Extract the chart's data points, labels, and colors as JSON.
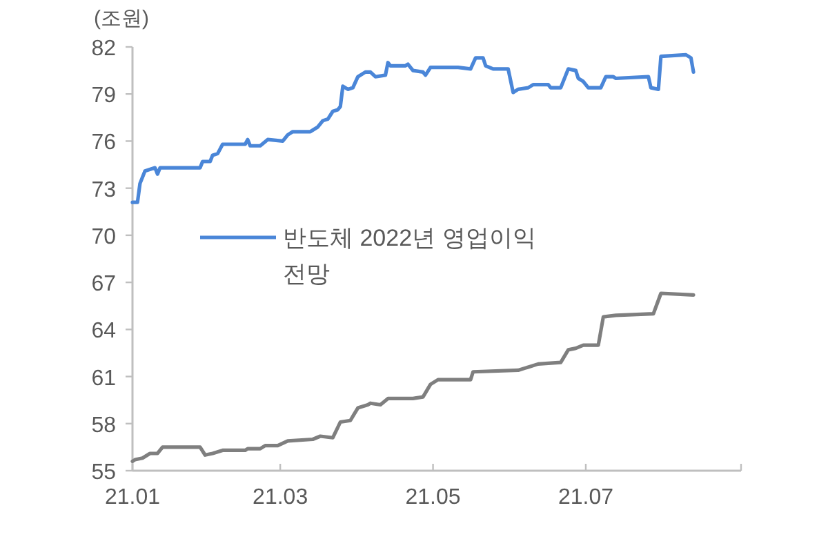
{
  "chart_data": {
    "type": "line",
    "ylabel": "(조원)",
    "xlim": [
      "--01-01",
      "--09-01"
    ],
    "xticks": [
      {
        "value": "--01-01",
        "label": "21.01"
      },
      {
        "value": "--03-01",
        "label": "21.03"
      },
      {
        "value": "--05-01",
        "label": "21.05"
      },
      {
        "value": "--07-01",
        "label": "21.07"
      },
      {
        "value": "--09-01",
        "label": null
      }
    ],
    "ylim": [
      55,
      82
    ],
    "yticks": [
      55,
      58,
      61,
      64,
      67,
      70,
      73,
      76,
      79,
      82
    ],
    "grid": false,
    "legend": "left",
    "marker": "none",
    "line_style": "solid",
    "series": [
      {
        "name": "반도체 2022년 영업이익 전망",
        "color": "#4a86d8",
        "x": [
          "--01-01",
          "--01-03",
          "--01-04",
          "--01-06",
          "--01-10",
          "--01-11",
          "--01-12",
          "--01-28",
          "--01-29",
          "--02-01",
          "--02-02",
          "--02-04",
          "--02-06",
          "--02-15",
          "--02-16",
          "--02-17",
          "--02-21",
          "--02-24",
          "--03-02",
          "--03-04",
          "--03-06",
          "--03-13",
          "--03-16",
          "--03-18",
          "--03-20",
          "--03-22",
          "--03-24",
          "--03-25",
          "--03-26",
          "--03-28",
          "--03-30",
          "--04-01",
          "--04-04",
          "--04-06",
          "--04-08",
          "--04-12",
          "--04-13",
          "--04-14",
          "--04-20",
          "--04-21",
          "--04-23",
          "--04-27",
          "--04-28",
          "--04-30",
          "--05-11",
          "--05-16",
          "--05-18",
          "--05-21",
          "--05-22",
          "--05-25",
          "--05-31",
          "--06-02",
          "--06-04",
          "--06-08",
          "--06-10",
          "--06-16",
          "--06-17",
          "--06-21",
          "--06-24",
          "--06-27",
          "--06-28",
          "--06-30",
          "--07-02",
          "--07-07",
          "--07-09",
          "--07-12",
          "--07-13",
          "--07-26",
          "--07-27",
          "--07-30",
          "--07-31",
          "--08-10",
          "--08-12",
          "--08-13"
        ],
        "values": [
          72.1,
          72.1,
          73.3,
          74.1,
          74.3,
          73.9,
          74.3,
          74.3,
          74.7,
          74.7,
          75.1,
          75.2,
          75.8,
          75.8,
          76.1,
          75.7,
          75.7,
          76.1,
          76.0,
          76.4,
          76.6,
          76.6,
          76.9,
          77.3,
          77.4,
          77.9,
          78.0,
          78.2,
          79.5,
          79.3,
          79.4,
          80.1,
          80.4,
          80.4,
          80.1,
          80.2,
          81.0,
          80.8,
          80.8,
          80.9,
          80.5,
          80.4,
          80.2,
          80.7,
          80.7,
          80.6,
          81.3,
          81.3,
          80.8,
          80.6,
          80.6,
          79.1,
          79.3,
          79.4,
          79.6,
          79.6,
          79.4,
          79.4,
          80.6,
          80.5,
          80.0,
          79.8,
          79.4,
          79.4,
          80.1,
          80.1,
          80.0,
          80.1,
          79.4,
          79.3,
          81.4,
          81.5,
          81.3,
          80.4
        ]
      },
      {
        "color": "#7f7f7f",
        "x": [
          "--01-01",
          "--01-02",
          "--01-05",
          "--01-08",
          "--01-11",
          "--01-13",
          "--01-28",
          "--01-30",
          "--02-02",
          "--02-04",
          "--02-06",
          "--02-15",
          "--02-16",
          "--02-21",
          "--02-23",
          "--02-28",
          "--03-04",
          "--03-14",
          "--03-17",
          "--03-22",
          "--03-25",
          "--03-29",
          "--04-01",
          "--04-05",
          "--04-06",
          "--04-10",
          "--04-13",
          "--04-23",
          "--04-27",
          "--04-30",
          "--05-03",
          "--05-16",
          "--05-17",
          "--06-04",
          "--06-08",
          "--06-12",
          "--06-21",
          "--06-24",
          "--06-27",
          "--06-30",
          "--07-06",
          "--07-08",
          "--07-13",
          "--07-28",
          "--07-31",
          "--08-13"
        ],
        "values": [
          55.6,
          55.7,
          55.8,
          56.1,
          56.1,
          56.5,
          56.5,
          56.0,
          56.1,
          56.2,
          56.3,
          56.3,
          56.4,
          56.4,
          56.6,
          56.6,
          56.9,
          57.0,
          57.2,
          57.1,
          58.1,
          58.2,
          59.0,
          59.2,
          59.3,
          59.2,
          59.6,
          59.6,
          59.7,
          60.5,
          60.8,
          60.8,
          61.3,
          61.4,
          61.6,
          61.8,
          61.9,
          62.7,
          62.8,
          63.0,
          63.0,
          64.8,
          64.9,
          65.0,
          66.3,
          66.2
        ]
      }
    ]
  }
}
